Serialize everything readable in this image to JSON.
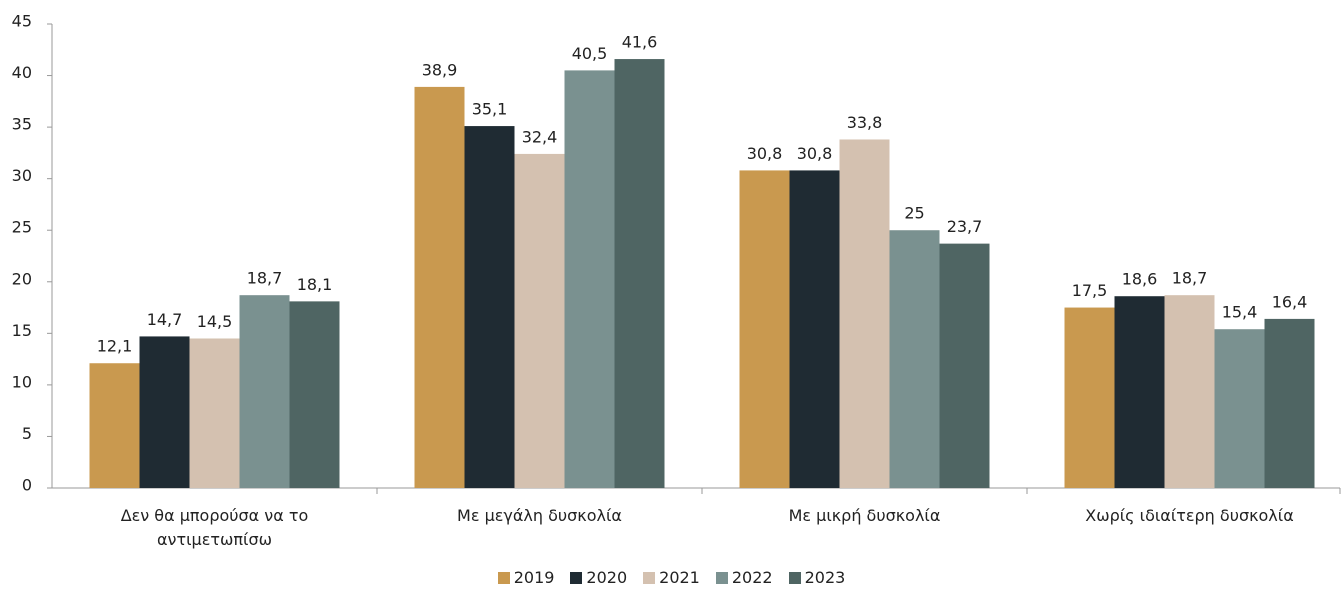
{
  "chart_data": {
    "type": "bar",
    "categories": [
      "Δεν θα μπορούσα να το αντιμετωπίσω",
      "Με μεγάλη δυσκολία",
      "Με μικρή δυσκολία",
      "Χωρίς ιδιαίτερη δυσκολία"
    ],
    "series": [
      {
        "name": "2019",
        "color": "#c9994f",
        "values": [
          12.1,
          38.9,
          30.8,
          17.5
        ],
        "value_labels": [
          "12,1",
          "38,9",
          "30,8",
          "17,5"
        ]
      },
      {
        "name": "2020",
        "color": "#1f2b33",
        "values": [
          14.7,
          35.1,
          30.8,
          18.6
        ],
        "value_labels": [
          "14,7",
          "35,1",
          "30,8",
          "18,6"
        ]
      },
      {
        "name": "2021",
        "color": "#d4c1b0",
        "values": [
          14.5,
          32.4,
          33.8,
          18.7
        ],
        "value_labels": [
          "14,5",
          "32,4",
          "33,8",
          "18,7"
        ]
      },
      {
        "name": "2022",
        "color": "#7a9190",
        "values": [
          18.7,
          40.5,
          25,
          15.4
        ],
        "value_labels": [
          "18,7",
          "40,5",
          "25",
          "15,4"
        ]
      },
      {
        "name": "2023",
        "color": "#4f6563",
        "values": [
          18.1,
          41.6,
          23.7,
          16.4
        ],
        "value_labels": [
          "18,1",
          "41,6",
          "23,7",
          "16,4"
        ]
      }
    ],
    "ylim": [
      0,
      45
    ],
    "yticks": [
      0,
      5,
      10,
      15,
      20,
      25,
      30,
      35,
      40,
      45
    ],
    "grid": false,
    "legend": "bottom"
  }
}
